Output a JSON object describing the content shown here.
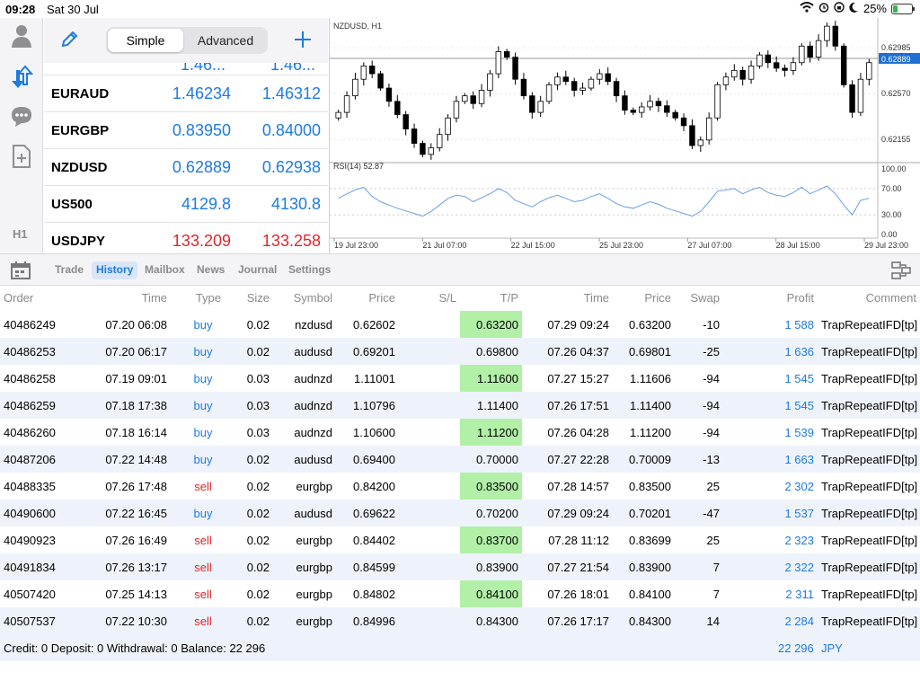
{
  "status": {
    "time": "09:28",
    "date": "Sat 30 Jul",
    "battery": "25%",
    "battery_level": 0.25
  },
  "quotes_panel": {
    "mode_simple": "Simple",
    "mode_advanced": "Advanced",
    "top_partial_bid": "1.46...",
    "top_partial_ask": "1.46...",
    "rows": [
      {
        "symbol": "EURAUD",
        "bid": "1.46234",
        "ask": "1.46312",
        "color": "blue"
      },
      {
        "symbol": "EURGBP",
        "bid": "0.83950",
        "ask": "0.84000",
        "color": "blue"
      },
      {
        "symbol": "NZDUSD",
        "bid": "0.62889",
        "ask": "0.62938",
        "color": "blue"
      },
      {
        "symbol": "US500",
        "bid": "4129.8",
        "ask": "4130.8",
        "color": "blue"
      },
      {
        "symbol": "USDJPY",
        "bid": "133.209",
        "ask": "133.258",
        "color": "red"
      }
    ],
    "timeframe": "H1"
  },
  "chart_data": [
    {
      "type": "line",
      "title": "NZDUSD, H1",
      "current_price_label": "0.62889",
      "y_ticks": [
        "0.62985",
        "0.62570",
        "0.62155"
      ],
      "ylim": [
        0.6197,
        0.6323
      ],
      "x_ticks": [
        "19 Jul 23:00",
        "21 Jul 07:00",
        "22 Jul 15:00",
        "25 Jul 23:00",
        "27 Jul 07:00",
        "28 Jul 15:00",
        "29 Jul 23:00"
      ],
      "series": [
        {
          "name": "NZDUSD",
          "values": [
            0.624,
            0.6255,
            0.627,
            0.6282,
            0.6275,
            0.6262,
            0.625,
            0.6238,
            0.6225,
            0.6212,
            0.6202,
            0.6208,
            0.622,
            0.6235,
            0.625,
            0.6255,
            0.6248,
            0.626,
            0.6275,
            0.6295,
            0.629,
            0.627,
            0.6255,
            0.624,
            0.625,
            0.6265,
            0.6272,
            0.6268,
            0.626,
            0.6262,
            0.627,
            0.6275,
            0.6268,
            0.6255,
            0.6242,
            0.624,
            0.6245,
            0.625,
            0.6246,
            0.624,
            0.6235,
            0.6228,
            0.621,
            0.6215,
            0.6235,
            0.6265,
            0.6272,
            0.6278,
            0.627,
            0.6282,
            0.6292,
            0.6285,
            0.628,
            0.6278,
            0.6285,
            0.63,
            0.629,
            0.6305,
            0.6318,
            0.63,
            0.6265,
            0.624,
            0.627,
            0.6285
          ]
        }
      ]
    },
    {
      "type": "line",
      "title": "RSI(14) 52.87",
      "y_ticks": [
        "100.00",
        "70.00",
        "30.00",
        "0.00"
      ],
      "ylim": [
        0,
        100
      ],
      "series": [
        {
          "name": "RSI(14)",
          "values": [
            55,
            62,
            68,
            72,
            58,
            50,
            45,
            40,
            36,
            32,
            28,
            35,
            45,
            55,
            60,
            58,
            50,
            56,
            62,
            70,
            64,
            52,
            47,
            42,
            50,
            56,
            60,
            55,
            50,
            52,
            58,
            62,
            55,
            47,
            42,
            40,
            45,
            50,
            46,
            40,
            36,
            32,
            28,
            35,
            50,
            66,
            68,
            70,
            62,
            68,
            72,
            64,
            60,
            58,
            64,
            72,
            62,
            68,
            74,
            62,
            45,
            30,
            52,
            55
          ]
        }
      ]
    }
  ],
  "tabs": [
    "Trade",
    "History",
    "Mailbox",
    "News",
    "Journal",
    "Settings"
  ],
  "active_tab": "History",
  "history": {
    "headers": [
      "Order",
      "Time",
      "Type",
      "Size",
      "Symbol",
      "Price",
      "S/L",
      "T/P",
      "Time",
      "Price",
      "Swap",
      "Profit",
      "Comment"
    ],
    "rows": [
      [
        "40486249",
        "07.20 06:08",
        "buy",
        "0.02",
        "nzdusd",
        "0.62602",
        "",
        "0.63200",
        "07.29 09:24",
        "0.63200",
        "-10",
        "1 588",
        "TrapRepeatIFD[tp]"
      ],
      [
        "40486253",
        "07.20 06:17",
        "buy",
        "0.02",
        "audusd",
        "0.69201",
        "",
        "0.69800",
        "07.26 04:37",
        "0.69801",
        "-25",
        "1 636",
        "TrapRepeatIFD[tp]"
      ],
      [
        "40486258",
        "07.19 09:01",
        "buy",
        "0.03",
        "audnzd",
        "1.11001",
        "",
        "1.11600",
        "07.27 15:27",
        "1.11606",
        "-94",
        "1 545",
        "TrapRepeatIFD[tp]"
      ],
      [
        "40486259",
        "07.18 17:38",
        "buy",
        "0.03",
        "audnzd",
        "1.10796",
        "",
        "1.11400",
        "07.26 17:51",
        "1.11400",
        "-94",
        "1 545",
        "TrapRepeatIFD[tp]"
      ],
      [
        "40486260",
        "07.18 16:14",
        "buy",
        "0.03",
        "audnzd",
        "1.10600",
        "",
        "1.11200",
        "07.26 04:28",
        "1.11200",
        "-94",
        "1 539",
        "TrapRepeatIFD[tp]"
      ],
      [
        "40487206",
        "07.22 14:48",
        "buy",
        "0.02",
        "audusd",
        "0.69400",
        "",
        "0.70000",
        "07.27 22:28",
        "0.70009",
        "-13",
        "1 663",
        "TrapRepeatIFD[tp]"
      ],
      [
        "40488335",
        "07.26 17:48",
        "sell",
        "0.02",
        "eurgbp",
        "0.84200",
        "",
        "0.83500",
        "07.28 14:57",
        "0.83500",
        "25",
        "2 302",
        "TrapRepeatIFD[tp]"
      ],
      [
        "40490600",
        "07.22 16:45",
        "buy",
        "0.02",
        "audusd",
        "0.69622",
        "",
        "0.70200",
        "07.29 09:24",
        "0.70201",
        "-47",
        "1 537",
        "TrapRepeatIFD[tp]"
      ],
      [
        "40490923",
        "07.26 16:49",
        "sell",
        "0.02",
        "eurgbp",
        "0.84402",
        "",
        "0.83700",
        "07.28 11:12",
        "0.83699",
        "25",
        "2 323",
        "TrapRepeatIFD[tp]"
      ],
      [
        "40491834",
        "07.26 13:17",
        "sell",
        "0.02",
        "eurgbp",
        "0.84599",
        "",
        "0.83900",
        "07.27 21:54",
        "0.83900",
        "7",
        "2 322",
        "TrapRepeatIFD[tp]"
      ],
      [
        "40507420",
        "07.25 14:13",
        "sell",
        "0.02",
        "eurgbp",
        "0.84802",
        "",
        "0.84100",
        "07.26 18:01",
        "0.84100",
        "7",
        "2 311",
        "TrapRepeatIFD[tp]"
      ],
      [
        "40507537",
        "07.22 10:30",
        "sell",
        "0.02",
        "eurgbp",
        "0.84996",
        "",
        "0.84300",
        "07.26 17:17",
        "0.84300",
        "14",
        "2 284",
        "TrapRepeatIFD[tp]"
      ]
    ]
  },
  "footer": {
    "summary": "Credit: 0 Deposit: 0 Withdrawal: 0 Balance: 22 296",
    "total": "22 296",
    "currency": "JPY"
  },
  "colors": {
    "accent": "#1e7be0",
    "sell": "#e0262b",
    "tp_highlight": "#b2f0a8",
    "row_alt": "#eef3fb"
  }
}
